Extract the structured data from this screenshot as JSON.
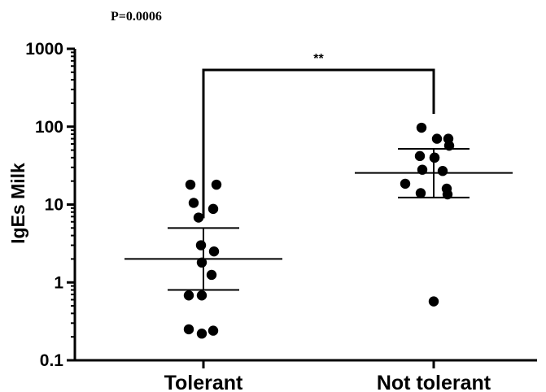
{
  "chart_data": {
    "type": "scatter",
    "note": "P=0.0006",
    "ylabel": "IgEs Milk",
    "xlabel": "",
    "yscale": "log",
    "ylim": [
      0.1,
      1000
    ],
    "yticks": [
      0.1,
      1,
      10,
      100,
      1000
    ],
    "ytick_labels": [
      "0.1",
      "1",
      "10",
      "100",
      "1000"
    ],
    "categories": [
      "Tolerant",
      "Not tolerant"
    ],
    "significance": "**",
    "groups": [
      {
        "category": "Tolerant",
        "points": [
          18,
          18,
          10.5,
          8.8,
          6.8,
          3,
          2.5,
          1.8,
          1.25,
          0.68,
          0.68,
          0.25,
          0.24,
          0.22
        ],
        "center": 2.0,
        "error_upper": 5.0,
        "error_lower": 0.8
      },
      {
        "category": "Not tolerant",
        "points": [
          97,
          70,
          70,
          57,
          42,
          40,
          40,
          28,
          27,
          18.5,
          16,
          14,
          13.5,
          0.57
        ],
        "center": 25.5,
        "error_upper": 52,
        "error_lower": 12.3
      }
    ],
    "colors": {
      "points": "#000000",
      "axes": "#000000",
      "lines": "#000000"
    }
  }
}
